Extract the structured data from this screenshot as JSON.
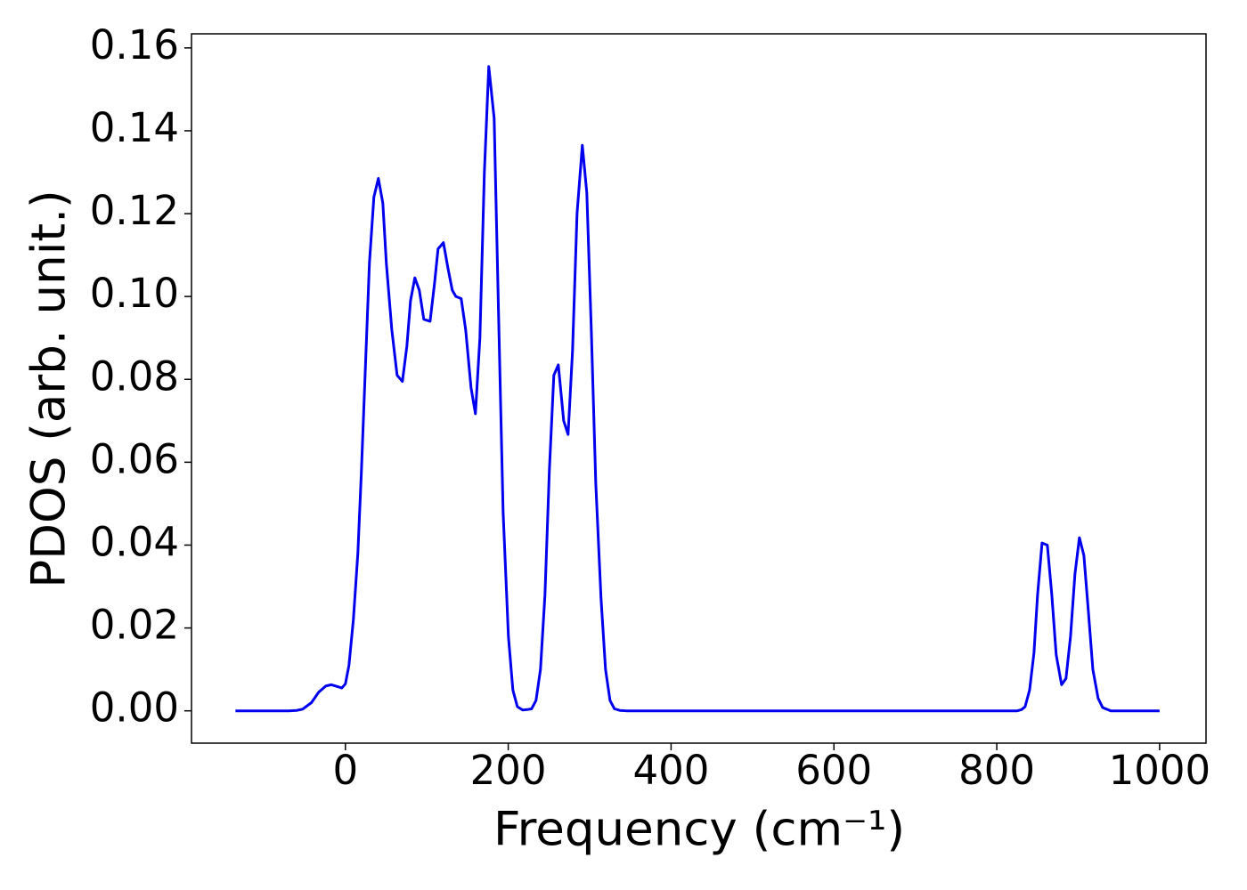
{
  "chart_data": {
    "type": "line",
    "xlabel": "Frequency (cm⁻¹)",
    "ylabel": "PDOS (arb. unit.)",
    "color": "#0000ee",
    "x": [
      -135,
      -100,
      -70,
      -60,
      -52.5,
      -41.6,
      -32.8,
      -24,
      -17.5,
      -8.8,
      -4.4,
      0,
      4.4,
      9.8,
      15.3,
      19.7,
      24,
      29.5,
      35,
      40.5,
      46,
      50.3,
      57,
      63.5,
      70,
      75.5,
      80,
      85.3,
      90.8,
      96.3,
      104,
      109.4,
      113.8,
      120.4,
      125.8,
      131.3,
      135.7,
      142.2,
      147.7,
      154.3,
      159.7,
      165.2,
      170.7,
      176.1,
      182.7,
      188.2,
      193.7,
      200.2,
      205.7,
      211.2,
      217.7,
      223.2,
      228.7,
      234.1,
      239.6,
      245.1,
      250.5,
      256,
      261.5,
      268.1,
      273.5,
      279,
      284.5,
      291,
      296.5,
      302,
      307.5,
      314,
      319.5,
      325,
      330.4,
      337,
      345,
      500,
      825,
      830.4,
      834.8,
      840.3,
      845.7,
      850.1,
      855.6,
      862.1,
      867.6,
      873,
      879.6,
      885,
      890.6,
      896,
      901.5,
      907,
      912.5,
      918,
      924.5,
      930,
      940,
      1000
    ],
    "values": [
      0,
      0,
      0,
      0.0001,
      0.0004,
      0.002,
      0.0045,
      0.006,
      0.0063,
      0.0058,
      0.0055,
      0.0065,
      0.011,
      0.022,
      0.038,
      0.058,
      0.08,
      0.108,
      0.124,
      0.1285,
      0.1225,
      0.108,
      0.092,
      0.081,
      0.0795,
      0.088,
      0.099,
      0.1045,
      0.1015,
      0.0945,
      0.094,
      0.103,
      0.1115,
      0.113,
      0.107,
      0.1015,
      0.1,
      0.0995,
      0.092,
      0.078,
      0.0717,
      0.09,
      0.13,
      0.1555,
      0.143,
      0.095,
      0.048,
      0.018,
      0.005,
      0.001,
      0.0002,
      0.0003,
      0.0005,
      0.0025,
      0.01,
      0.028,
      0.058,
      0.081,
      0.0835,
      0.07,
      0.0667,
      0.087,
      0.12,
      0.1365,
      0.125,
      0.092,
      0.055,
      0.027,
      0.01,
      0.0025,
      0.0005,
      0.0001,
      0,
      0,
      0,
      0.0003,
      0.001,
      0.005,
      0.014,
      0.028,
      0.0405,
      0.04,
      0.028,
      0.0135,
      0.0063,
      0.0078,
      0.018,
      0.033,
      0.0418,
      0.0375,
      0.024,
      0.01,
      0.003,
      0.0008,
      0,
      0
    ],
    "xlim": [
      -189,
      1057
    ],
    "ylim": [
      -0.0078,
      0.1634
    ],
    "xticks": [
      0,
      200,
      400,
      600,
      800,
      1000
    ],
    "yticks": [
      {
        "value": 0,
        "label": "0.00"
      },
      {
        "value": 0.02,
        "label": "0.02"
      },
      {
        "value": 0.04,
        "label": "0.04"
      },
      {
        "value": 0.06,
        "label": "0.06"
      },
      {
        "value": 0.08,
        "label": "0.08"
      },
      {
        "value": 0.1,
        "label": "0.10"
      },
      {
        "value": 0.12,
        "label": "0.12"
      },
      {
        "value": 0.14,
        "label": "0.14"
      },
      {
        "value": 0.16,
        "label": "0.16"
      }
    ],
    "grid": false
  }
}
